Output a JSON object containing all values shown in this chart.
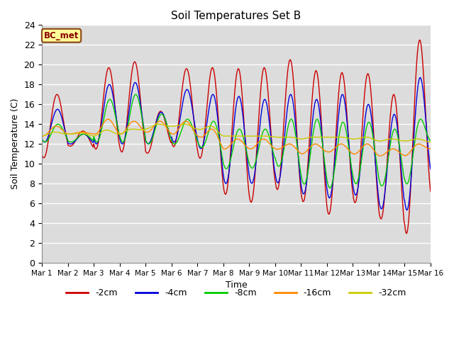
{
  "title": "Soil Temperatures Set B",
  "xlabel": "Time",
  "ylabel": "Soil Temperature (C)",
  "annotation": "BC_met",
  "ylim": [
    0,
    24
  ],
  "yticks": [
    0,
    2,
    4,
    6,
    8,
    10,
    12,
    14,
    16,
    18,
    20,
    22,
    24
  ],
  "xtick_labels": [
    "Mar 1",
    "Mar 2",
    "Mar 3",
    "Mar 4",
    "Mar 5",
    "Mar 6",
    "Mar 7",
    "Mar 8",
    "Mar 9",
    "Mar 10",
    "Mar 11",
    "Mar 12",
    "Mar 13",
    "Mar 14",
    "Mar 15",
    "Mar 16"
  ],
  "background_color": "#dcdcdc",
  "series": {
    "-2cm": {
      "color": "#cc0000"
    },
    "-4cm": {
      "color": "#0000dd"
    },
    "-8cm": {
      "color": "#00cc00"
    },
    "-16cm": {
      "color": "#ff8800"
    },
    "-32cm": {
      "color": "#cccc00"
    }
  },
  "legend_labels": [
    "-2cm",
    "-4cm",
    "-8cm",
    "-16cm",
    "-32cm"
  ],
  "legend_colors": [
    "#cc0000",
    "#0000dd",
    "#00cc00",
    "#ff8800",
    "#cccc00"
  ]
}
